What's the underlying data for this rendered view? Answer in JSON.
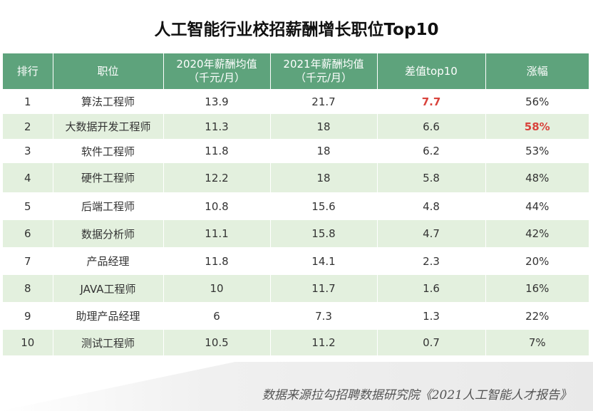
{
  "chart_data": {
    "type": "table",
    "title": "人工智能行业校招薪酬增长职位Top10",
    "columns": [
      "排行",
      "职位",
      "2020年薪酬均值\n（千元/月）",
      "2021年薪酬均值\n（千元/月）",
      "差值top10",
      "涨幅"
    ],
    "rows": [
      [
        "1",
        "算法工程师",
        "13.9",
        "21.7",
        "7.7",
        "56%"
      ],
      [
        "2",
        "大数据开发工程师",
        "11.3",
        "18",
        "6.6",
        "58%"
      ],
      [
        "3",
        "软件工程师",
        "11.8",
        "18",
        "6.2",
        "53%"
      ],
      [
        "4",
        "硬件工程师",
        "12.2",
        "18",
        "5.8",
        "48%"
      ],
      [
        "5",
        "后端工程师",
        "10.8",
        "15.6",
        "4.8",
        "44%"
      ],
      [
        "6",
        "数据分析师",
        "11.1",
        "15.8",
        "4.7",
        "42%"
      ],
      [
        "7",
        "产品经理",
        "11.8",
        "14.1",
        "2.3",
        "20%"
      ],
      [
        "8",
        "JAVA工程师",
        "10",
        "11.7",
        "1.6",
        "16%"
      ],
      [
        "9",
        "助理产品经理",
        "6",
        "7.3",
        "1.3",
        "22%"
      ],
      [
        "10",
        "测试工程师",
        "10.5",
        "11.2",
        "0.7",
        "7%"
      ]
    ],
    "highlights": [
      {
        "row": 0,
        "col": 4,
        "color": "#d9433c"
      },
      {
        "row": 1,
        "col": 5,
        "color": "#d9433c"
      }
    ],
    "colors": {
      "header": "#5ea37c",
      "stripe": "#e3f0de",
      "highlight": "#d9433c"
    }
  },
  "source": "数据来源拉勾招聘数据研究院《2021人工智能人才报告》"
}
